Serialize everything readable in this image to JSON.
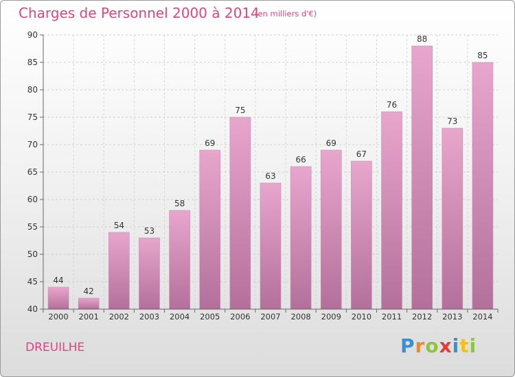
{
  "chart_data": {
    "type": "bar",
    "title": "Charges de Personnel 2000 à 2014",
    "subtitle": "(en milliers d'€)",
    "categories": [
      "2000",
      "2001",
      "2002",
      "2003",
      "2004",
      "2005",
      "2006",
      "2007",
      "2008",
      "2009",
      "2010",
      "2011",
      "2012",
      "2013",
      "2014"
    ],
    "values": [
      44,
      42,
      54,
      53,
      58,
      69,
      75,
      63,
      66,
      69,
      67,
      76,
      88,
      73,
      85
    ],
    "ylim": [
      40,
      90
    ],
    "yticks": [
      40,
      45,
      50,
      55,
      60,
      65,
      70,
      75,
      80,
      85,
      90
    ],
    "grid": true,
    "bar_color_top": "#e8a6cd",
    "bar_color_bottom": "#b3709a"
  },
  "commune": "DREUILHE",
  "logo": {
    "letters": [
      {
        "char": "P",
        "color": "#3b8fd0"
      },
      {
        "char": "r",
        "color": "#f08a1c"
      },
      {
        "char": "o",
        "color": "#8cc63f"
      },
      {
        "char": "x",
        "color": "#e53935"
      },
      {
        "char": "i",
        "color": "#3b8fd0"
      },
      {
        "char": "t",
        "color": "#f4c20d"
      },
      {
        "char": "i",
        "color": "#8cc63f"
      }
    ]
  }
}
